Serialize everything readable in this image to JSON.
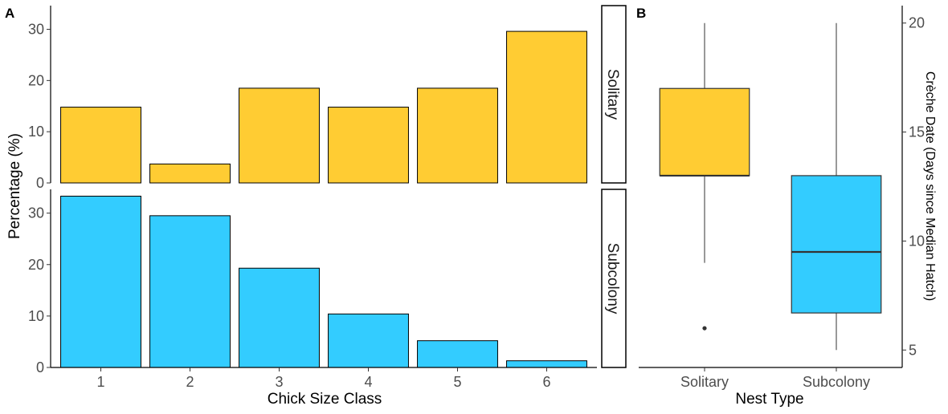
{
  "chart_data": [
    {
      "panel_tag": "A",
      "type": "bar",
      "facet_direction": "rows",
      "xlabel": "Chick Size Class",
      "ylabel": "Percentage (%)",
      "categories": [
        "1",
        "2",
        "3",
        "4",
        "5",
        "6"
      ],
      "ylim": [
        0,
        34
      ],
      "yticks": [
        "0",
        "10",
        "20",
        "30"
      ],
      "grid": false,
      "facets": [
        {
          "name": "Solitary",
          "color": "#FFCC33",
          "values": [
            14.8,
            3.7,
            18.5,
            14.8,
            18.5,
            29.6
          ]
        },
        {
          "name": "Subcolony",
          "color": "#33CCFF",
          "values": [
            33.3,
            29.5,
            19.3,
            10.4,
            5.2,
            1.3
          ]
        }
      ]
    },
    {
      "panel_tag": "B",
      "type": "boxplot",
      "xlabel": "Nest Type",
      "ylabel": "Crèche Date (Days since Median Hatch)",
      "y_axis_position": "right",
      "ylim": [
        4.2,
        20.8
      ],
      "yticks": [
        "5",
        "10",
        "15",
        "20"
      ],
      "grid": false,
      "categories": [
        "Solitary",
        "Subcolony"
      ],
      "boxes": [
        {
          "name": "Solitary",
          "color": "#FFCC33",
          "min": 9,
          "q1": 13,
          "median": 13,
          "q3": 17,
          "max": 20,
          "outliers": [
            6
          ]
        },
        {
          "name": "Subcolony",
          "color": "#33CCFF",
          "min": 5,
          "q1": 6.7,
          "median": 9.5,
          "q3": 13,
          "max": 20,
          "outliers": []
        }
      ]
    }
  ]
}
